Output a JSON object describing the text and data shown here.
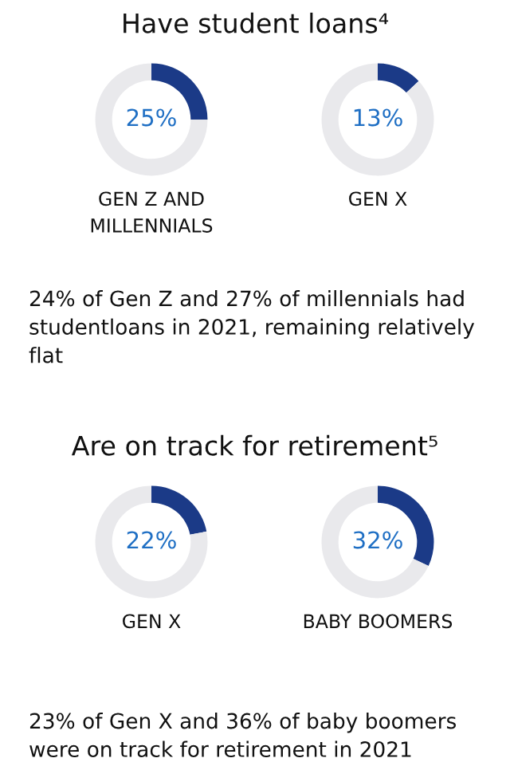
{
  "chart_data": [
    {
      "type": "donut",
      "title": "Have student loans⁴",
      "categories": [
        null,
        null
      ],
      "values": [
        25,
        75
      ],
      "colors": [
        "#1b3a87",
        "#e9e9ec"
      ],
      "value_labels": [
        "25%",
        null
      ],
      "xlabel": "GEN Z AND\nMILLENNIALS",
      "annotations": [
        "24% of Gen Z and 27% of millennials had studentloans in 2021, remaining relatively flat"
      ]
    },
    {
      "type": "donut",
      "categories": [
        null,
        null
      ],
      "values": [
        13,
        87
      ],
      "colors": [
        "#1b3a87",
        "#e9e9ec"
      ],
      "value_labels": [
        "13%",
        null
      ],
      "xlabel": "GEN X"
    },
    {
      "type": "donut",
      "title": "Are on track for retirement⁵",
      "categories": [
        null,
        null
      ],
      "values": [
        22,
        78
      ],
      "colors": [
        "#1b3a87",
        "#e9e9ec"
      ],
      "value_labels": [
        "22%",
        null
      ],
      "xlabel": "GEN X",
      "annotations": [
        "23% of Gen X and 36% of baby boomers were on track for retirement in 2021"
      ]
    },
    {
      "type": "donut",
      "categories": [
        null,
        null
      ],
      "values": [
        32,
        68
      ],
      "colors": [
        "#1b3a87",
        "#e9e9ec"
      ],
      "value_labels": [
        "32%",
        null
      ],
      "xlabel": "BABY BOOMERS"
    }
  ]
}
